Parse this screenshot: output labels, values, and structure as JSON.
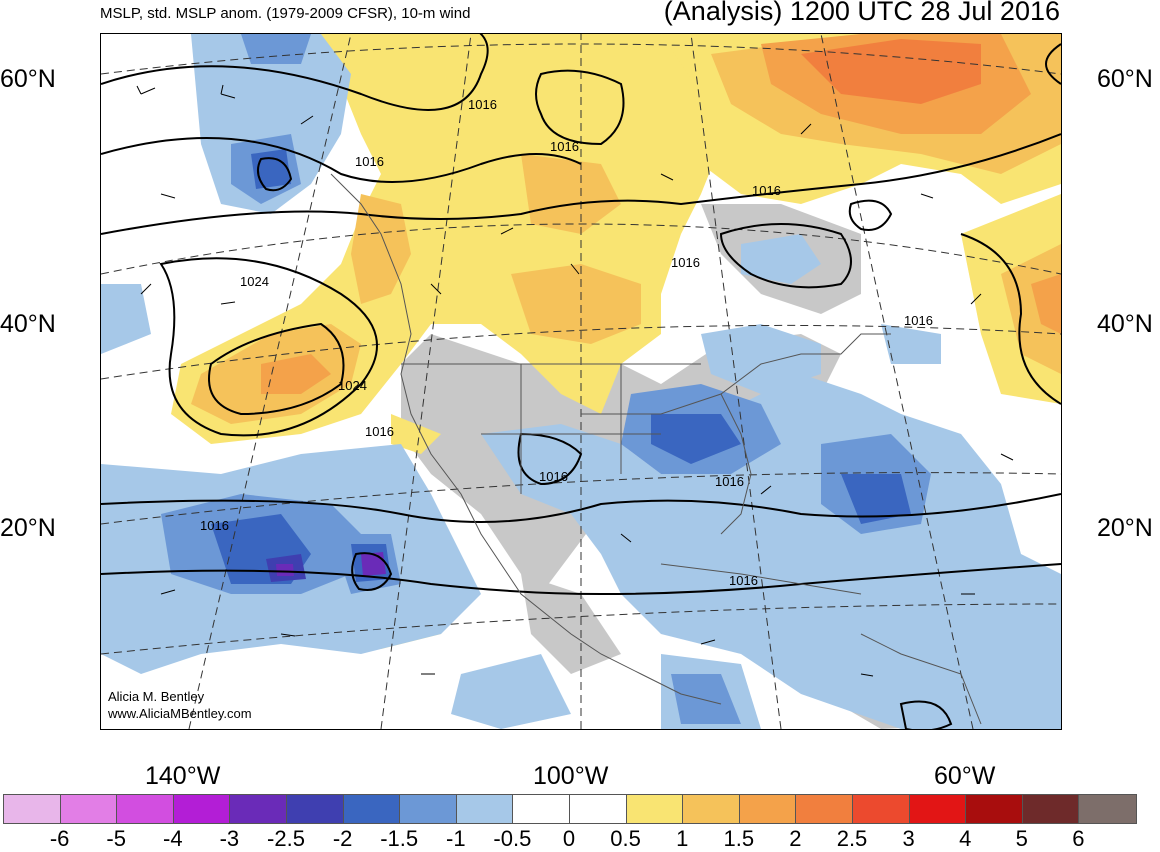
{
  "header": {
    "left_title": "MSLP, std. MSLP anom. (1979-2009 CFSR), 10-m wind",
    "right_title": "(Analysis) 1200 UTC 28 Jul 2016"
  },
  "latitude_labels": [
    "60°N",
    "40°N",
    "20°N"
  ],
  "longitude_labels": [
    "140°W",
    "100°W",
    "60°W"
  ],
  "contour_labels": [
    "1016",
    "1016",
    "1016",
    "1016",
    "1016",
    "1024",
    "1024",
    "1016",
    "1016",
    "1016",
    "1016",
    "1016",
    "1016"
  ],
  "credit": {
    "line1": "Alicia M. Bentley",
    "line2": "www.AliciaMBentley.com"
  },
  "colorbar": {
    "labels": [
      "-6",
      "-5",
      "-4",
      "-3",
      "-2.5",
      "-2",
      "-1.5",
      "-1",
      "-0.5",
      "0",
      "0.5",
      "1",
      "1.5",
      "2",
      "2.5",
      "3",
      "4",
      "5",
      "6"
    ],
    "colors": [
      "#e8b6ea",
      "#e27ee6",
      "#d24ee0",
      "#b31ed6",
      "#6a2bb8",
      "#3f3fb0",
      "#3a66c0",
      "#6c98d6",
      "#a6c8e8",
      "#ffffff",
      "#ffffff",
      "#f9e472",
      "#f5c25a",
      "#f4a24a",
      "#f17f3e",
      "#ec4a2e",
      "#e21515",
      "#a80d0d",
      "#6e2a2a",
      "#7d6e6a"
    ]
  },
  "colors": {
    "land_anomaly_neutral": "#c8c8c8",
    "contour": "#000000",
    "coast": "#555555"
  }
}
